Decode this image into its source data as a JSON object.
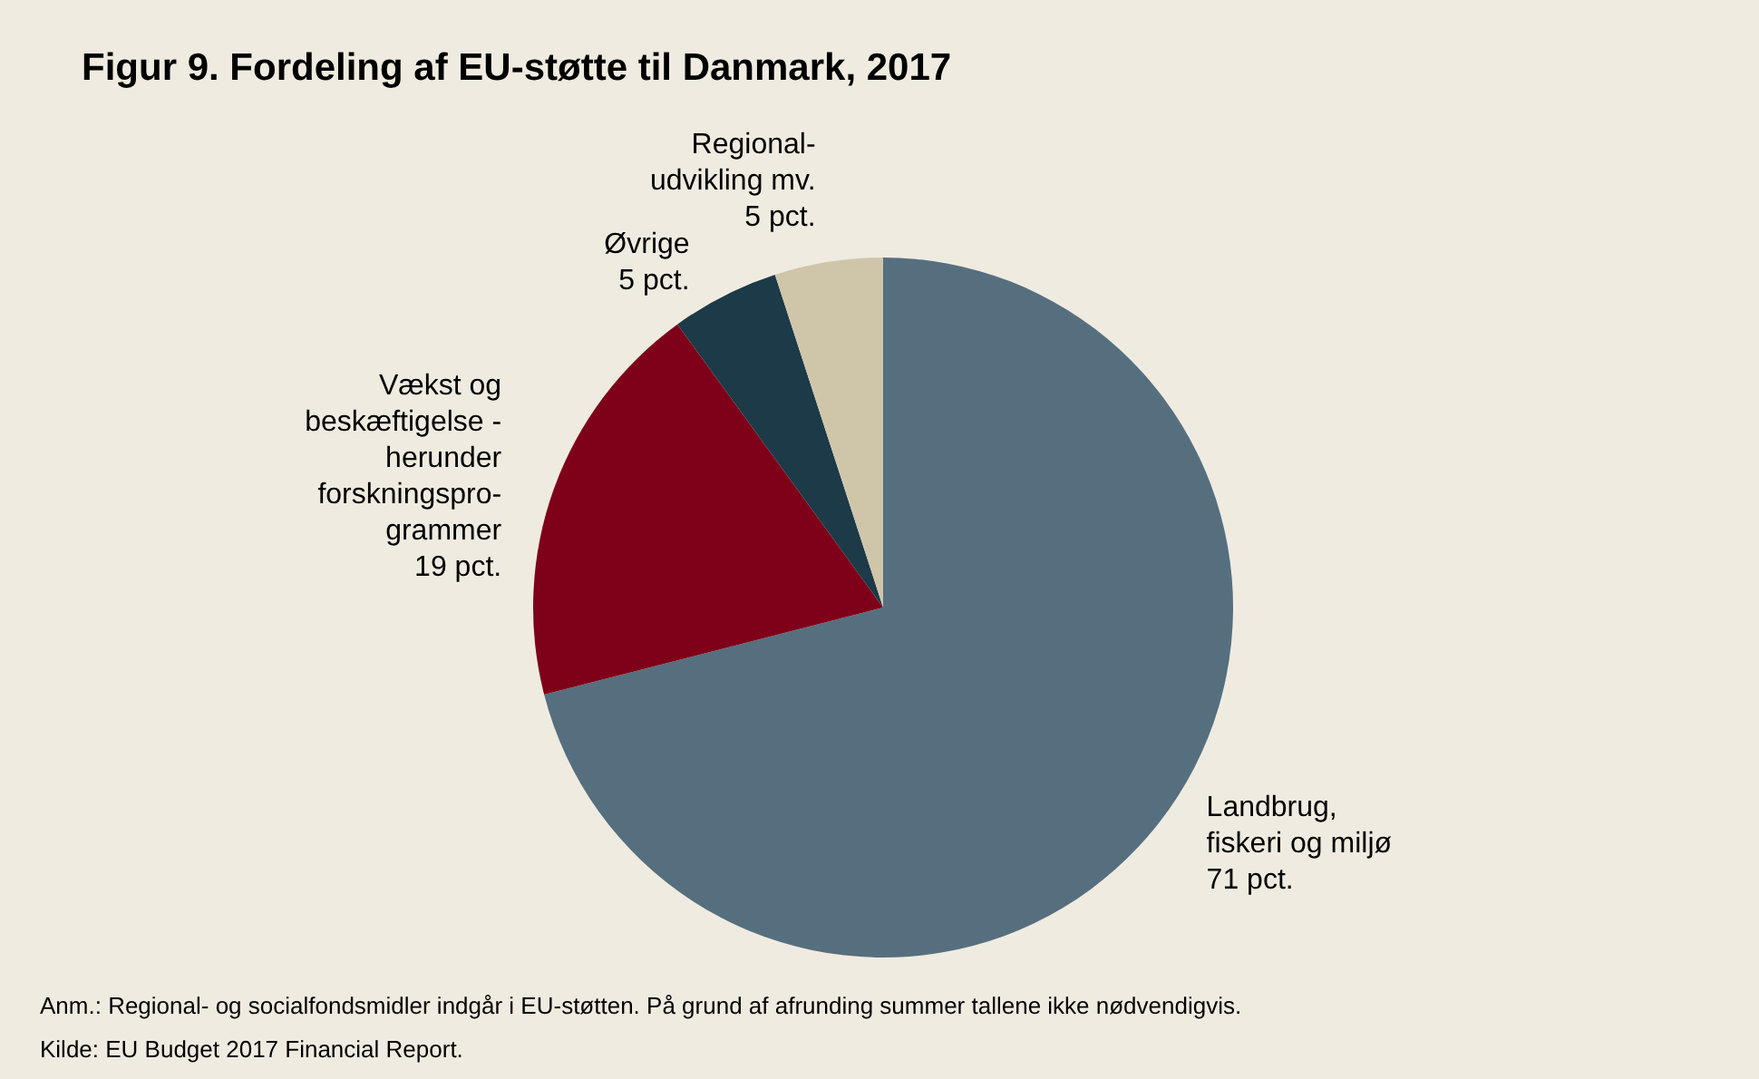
{
  "chart_data": {
    "type": "pie",
    "title": "Figur 9. Fordeling af EU-støtte til Danmark, 2017",
    "categories": [
      "Landbrug,\nfiskeri og miljø",
      "Vækst og\nbeskæftigelse -\nherunder\nforskningspro-\ngrammer",
      "Øvrige",
      "Regional-\nudvikling mv."
    ],
    "values": [
      71,
      19,
      5,
      5
    ],
    "value_labels": [
      "71 pct.",
      "19 pct.",
      "5 pct.",
      "5 pct."
    ],
    "colors": [
      "#566f7f",
      "#7f0019",
      "#1c3a48",
      "#cfc6aa"
    ],
    "legend": false,
    "annotations": [
      "Anm.: Regional- og socialfondsmidler indgår i EU-støtten. På grund af afrunding summer tallene ikke nødvendigvis.",
      "Kilde: EU Budget 2017 Financial Report."
    ]
  }
}
